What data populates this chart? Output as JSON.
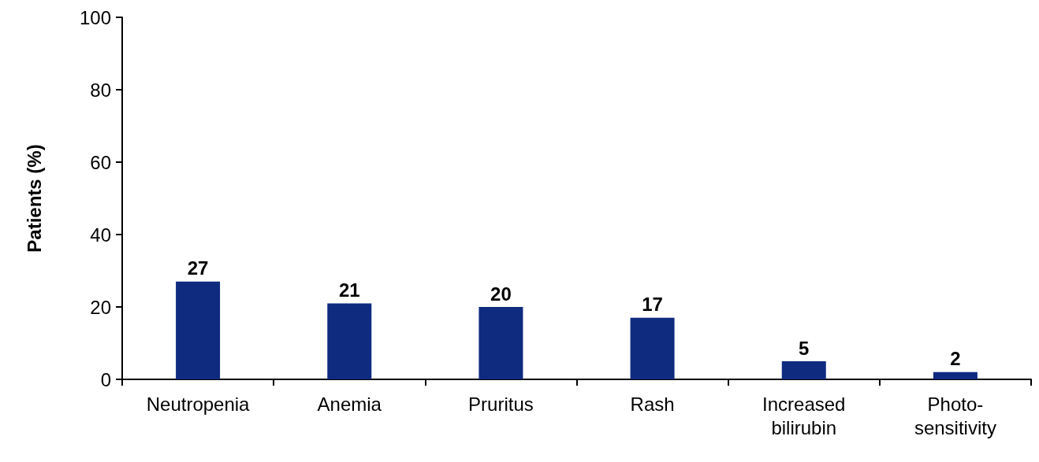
{
  "chart_data": {
    "type": "bar",
    "ylabel": "Patients (%)",
    "categories": [
      "Neutropenia",
      "Anemia",
      "Pruritus",
      "Rash",
      "Increased\nbilirubin",
      "Photo-\nsensitivity"
    ],
    "values": [
      27,
      21,
      20,
      17,
      5,
      2
    ],
    "color": "#0f2b80",
    "ylim": [
      0,
      100
    ],
    "yticks": [
      0,
      20,
      40,
      60,
      80,
      100
    ],
    "grid": false,
    "data_labels": true
  }
}
